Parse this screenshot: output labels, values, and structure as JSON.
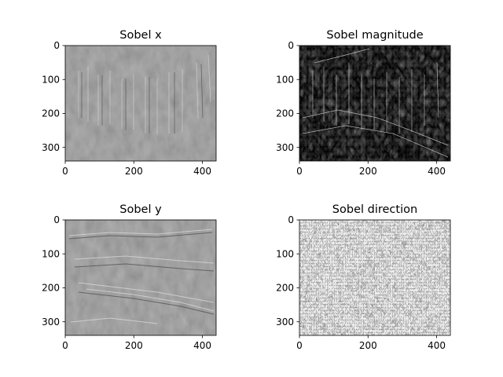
{
  "figure": {
    "panels": [
      {
        "title": "Sobel x",
        "image_style": "gray-relief",
        "xticks": [
          "0",
          "200",
          "400"
        ],
        "yticks": [
          "0",
          "100",
          "200",
          "300"
        ]
      },
      {
        "title": "Sobel magnitude",
        "image_style": "dark-edges",
        "xticks": [
          "0",
          "200",
          "400"
        ],
        "yticks": [
          "0",
          "100",
          "200",
          "300"
        ]
      },
      {
        "title": "Sobel y",
        "image_style": "gray-relief",
        "xticks": [
          "0",
          "200",
          "400"
        ],
        "yticks": [
          "0",
          "100",
          "200",
          "300"
        ]
      },
      {
        "title": "Sobel direction",
        "image_style": "noisy-edges",
        "xticks": [
          "0",
          "200",
          "400"
        ],
        "yticks": [
          "0",
          "100",
          "200",
          "300"
        ]
      }
    ],
    "colors": {
      "relief_base": "#808080",
      "magnitude_base": "#0a0a0a",
      "direction_base": "#606060"
    }
  }
}
